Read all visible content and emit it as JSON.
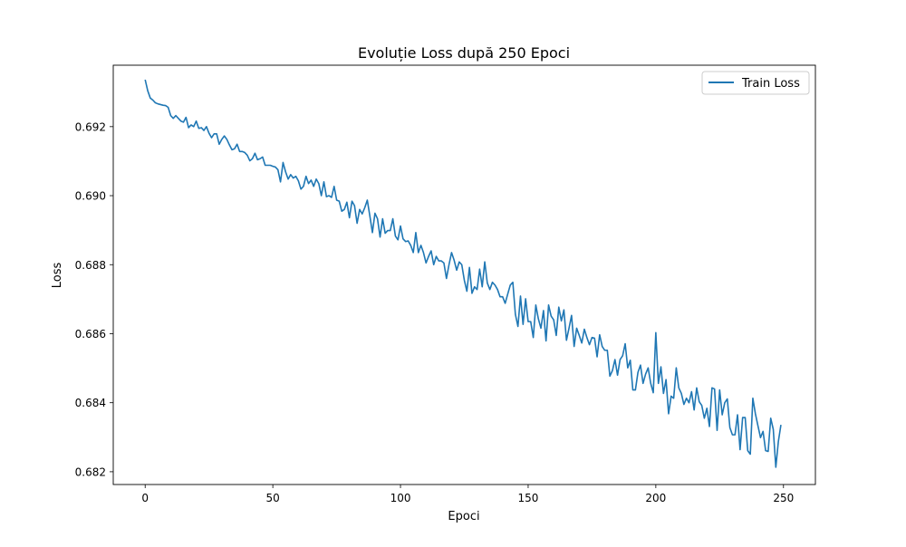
{
  "chart_data": {
    "type": "line",
    "title": "Evoluție Loss după 250 Epoci",
    "xlabel": "Epoci",
    "ylabel": "Loss",
    "xlim": [
      -12.5,
      262.5
    ],
    "ylim": [
      0.68163,
      0.69378
    ],
    "xticks": [
      0,
      50,
      100,
      150,
      200,
      250
    ],
    "yticks": [
      0.682,
      0.684,
      0.686,
      0.688,
      0.69,
      0.692
    ],
    "ytick_labels": [
      "0.682",
      "0.684",
      "0.686",
      "0.688",
      "0.690",
      "0.692"
    ],
    "grid": false,
    "legend_position": "top-right",
    "series": [
      {
        "name": "Train Loss",
        "color": "#1f77b4",
        "values": [
          0.69336,
          0.69304,
          0.69283,
          0.69277,
          0.69269,
          0.69266,
          0.69264,
          0.69262,
          0.69261,
          0.69256,
          0.69232,
          0.69224,
          0.69232,
          0.69224,
          0.69216,
          0.69213,
          0.69227,
          0.69197,
          0.69205,
          0.692,
          0.69216,
          0.69195,
          0.69197,
          0.69189,
          0.692,
          0.69181,
          0.69168,
          0.69179,
          0.69179,
          0.69149,
          0.69163,
          0.69173,
          0.69163,
          0.69147,
          0.69133,
          0.69136,
          0.69149,
          0.69128,
          0.69128,
          0.69125,
          0.69117,
          0.69101,
          0.69107,
          0.69123,
          0.69104,
          0.69107,
          0.69112,
          0.69088,
          0.69088,
          0.69088,
          0.69085,
          0.69083,
          0.69075,
          0.6904,
          0.69096,
          0.69069,
          0.69048,
          0.69061,
          0.69051,
          0.69056,
          0.69043,
          0.69019,
          0.69027,
          0.69056,
          0.69035,
          0.69045,
          0.69027,
          0.69048,
          0.69035,
          0.69,
          0.6904,
          0.68997,
          0.69,
          0.68995,
          0.69027,
          0.68987,
          0.68984,
          0.68955,
          0.6896,
          0.68981,
          0.68936,
          0.68984,
          0.68971,
          0.6892,
          0.6896,
          0.68947,
          0.68965,
          0.68987,
          0.68941,
          0.68893,
          0.68949,
          0.68933,
          0.6888,
          0.68933,
          0.68891,
          0.68899,
          0.68899,
          0.68933,
          0.68883,
          0.68872,
          0.68912,
          0.68875,
          0.68867,
          0.68869,
          0.68856,
          0.68835,
          0.68893,
          0.68835,
          0.68856,
          0.68835,
          0.68805,
          0.68824,
          0.6884,
          0.688,
          0.68824,
          0.68811,
          0.68811,
          0.68805,
          0.6876,
          0.688,
          0.68835,
          0.68813,
          0.68784,
          0.68808,
          0.688,
          0.68755,
          0.68723,
          0.68792,
          0.68717,
          0.68736,
          0.68728,
          0.68787,
          0.68736,
          0.68808,
          0.68747,
          0.68728,
          0.68749,
          0.68741,
          0.68728,
          0.68707,
          0.68707,
          0.68688,
          0.68715,
          0.68741,
          0.68749,
          0.68656,
          0.68621,
          0.68709,
          0.68627,
          0.68701,
          0.68635,
          0.68635,
          0.68589,
          0.68683,
          0.68643,
          0.68616,
          0.68667,
          0.68579,
          0.68683,
          0.68651,
          0.6864,
          0.68595,
          0.68677,
          0.68637,
          0.68669,
          0.68581,
          0.68616,
          0.68653,
          0.68563,
          0.68616,
          0.68595,
          0.68573,
          0.68613,
          0.68589,
          0.68568,
          0.68589,
          0.68587,
          0.68533,
          0.68597,
          0.68563,
          0.68552,
          0.68552,
          0.68477,
          0.68493,
          0.68525,
          0.6848,
          0.68525,
          0.68536,
          0.68571,
          0.68501,
          0.68523,
          0.68437,
          0.68437,
          0.68488,
          0.68509,
          0.68456,
          0.68483,
          0.68501,
          0.68456,
          0.68429,
          0.68603,
          0.68456,
          0.68504,
          0.68427,
          0.68467,
          0.68368,
          0.68419,
          0.68413,
          0.68501,
          0.68443,
          0.68427,
          0.68395,
          0.68413,
          0.684,
          0.68432,
          0.68379,
          0.68443,
          0.68403,
          0.68392,
          0.68355,
          0.68384,
          0.68331,
          0.68443,
          0.6844,
          0.6832,
          0.68437,
          0.68365,
          0.684,
          0.68411,
          0.68328,
          0.68307,
          0.68307,
          0.68365,
          0.68264,
          0.68357,
          0.68357,
          0.68261,
          0.68251,
          0.68413,
          0.68368,
          0.68333,
          0.68299,
          0.68317,
          0.68261,
          0.68259,
          0.68355,
          0.68323,
          0.68213,
          0.68288,
          0.68336
        ]
      }
    ]
  }
}
